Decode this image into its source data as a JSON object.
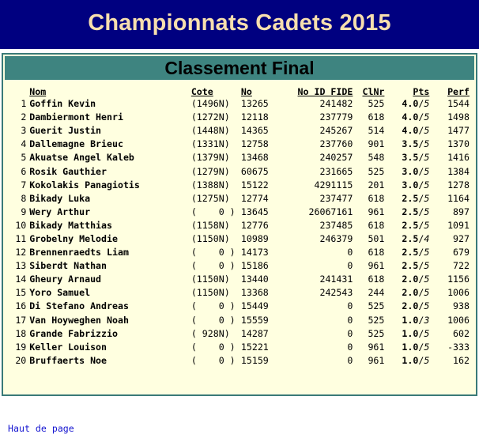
{
  "page": {
    "title": "Championnats Cadets 2015"
  },
  "section": {
    "title": "Classement Final"
  },
  "columns": {
    "rank": "",
    "name": "Nom",
    "cote": "Cote",
    "no": "No",
    "fide": "No ID FIDE",
    "clnr": "ClNr",
    "pts": "Pts",
    "perf": "Perf"
  },
  "rows": [
    {
      "rank": "1",
      "name": "Goffin Kevin",
      "cote": "(1496N)",
      "no": "13265",
      "fide": "241482",
      "clnr": "525",
      "pts": "4.0",
      "games": "5",
      "perf": "1544"
    },
    {
      "rank": "2",
      "name": "Dambiermont Henri",
      "cote": "(1272N)",
      "no": "12118",
      "fide": "237779",
      "clnr": "618",
      "pts": "4.0",
      "games": "5",
      "perf": "1498"
    },
    {
      "rank": "3",
      "name": "Guerit Justin",
      "cote": "(1448N)",
      "no": "14365",
      "fide": "245267",
      "clnr": "514",
      "pts": "4.0",
      "games": "5",
      "perf": "1477"
    },
    {
      "rank": "4",
      "name": "Dallemagne Brieuc",
      "cote": "(1331N)",
      "no": "12758",
      "fide": "237760",
      "clnr": "901",
      "pts": "3.5",
      "games": "5",
      "perf": "1370"
    },
    {
      "rank": "5",
      "name": "Akuatse Angel Kaleb",
      "cote": "(1379N)",
      "no": "13468",
      "fide": "240257",
      "clnr": "548",
      "pts": "3.5",
      "games": "5",
      "perf": "1416"
    },
    {
      "rank": "6",
      "name": "Rosik Gauthier",
      "cote": "(1279N)",
      "no": "60675",
      "fide": "231665",
      "clnr": "525",
      "pts": "3.0",
      "games": "5",
      "perf": "1384"
    },
    {
      "rank": "7",
      "name": "Kokolakis Panagiotis",
      "cote": "(1388N)",
      "no": "15122",
      "fide": "4291115",
      "clnr": "201",
      "pts": "3.0",
      "games": "5",
      "perf": "1278"
    },
    {
      "rank": "8",
      "name": "Bikady Luka",
      "cote": "(1275N)",
      "no": "12774",
      "fide": "237477",
      "clnr": "618",
      "pts": "2.5",
      "games": "5",
      "perf": "1164"
    },
    {
      "rank": "9",
      "name": "Wery Arthur",
      "cote": "(    0 )",
      "no": "13645",
      "fide": "26067161",
      "clnr": "961",
      "pts": "2.5",
      "games": "5",
      "perf": "897"
    },
    {
      "rank": "10",
      "name": "Bikady Matthias",
      "cote": "(1158N)",
      "no": "12776",
      "fide": "237485",
      "clnr": "618",
      "pts": "2.5",
      "games": "5",
      "perf": "1091"
    },
    {
      "rank": "11",
      "name": "Grobelny Melodie",
      "cote": "(1150N)",
      "no": "10989",
      "fide": "246379",
      "clnr": "501",
      "pts": "2.5",
      "games": "4",
      "perf": "927"
    },
    {
      "rank": "12",
      "name": "Brennenraedts Liam",
      "cote": "(    0 )",
      "no": "14173",
      "fide": "0",
      "clnr": "618",
      "pts": "2.5",
      "games": "5",
      "perf": "679"
    },
    {
      "rank": "13",
      "name": "Siberdt Nathan",
      "cote": "(    0 )",
      "no": "15186",
      "fide": "0",
      "clnr": "961",
      "pts": "2.5",
      "games": "5",
      "perf": "722"
    },
    {
      "rank": "14",
      "name": "Gheury Arnaud",
      "cote": "(1150N)",
      "no": "13440",
      "fide": "241431",
      "clnr": "618",
      "pts": "2.0",
      "games": "5",
      "perf": "1156"
    },
    {
      "rank": "15",
      "name": "Yoro Samuel",
      "cote": "(1150N)",
      "no": "13368",
      "fide": "242543",
      "clnr": "244",
      "pts": "2.0",
      "games": "5",
      "perf": "1006"
    },
    {
      "rank": "16",
      "name": "Di Stefano Andreas",
      "cote": "(    0 )",
      "no": "15449",
      "fide": "0",
      "clnr": "525",
      "pts": "2.0",
      "games": "5",
      "perf": "938"
    },
    {
      "rank": "17",
      "name": "Van Hoyweghen Noah",
      "cote": "(    0 )",
      "no": "15559",
      "fide": "0",
      "clnr": "525",
      "pts": "1.0",
      "games": "3",
      "perf": "1006"
    },
    {
      "rank": "18",
      "name": "Grande Fabrizzio",
      "cote": "( 928N)",
      "no": "14287",
      "fide": "0",
      "clnr": "525",
      "pts": "1.0",
      "games": "5",
      "perf": "602"
    },
    {
      "rank": "19",
      "name": "Keller Louison",
      "cote": "(    0 )",
      "no": "15221",
      "fide": "0",
      "clnr": "961",
      "pts": "1.0",
      "games": "5",
      "perf": "-333"
    },
    {
      "rank": "20",
      "name": "Bruffaerts Noe",
      "cote": "(    0 )",
      "no": "15159",
      "fide": "0",
      "clnr": "961",
      "pts": "1.0",
      "games": "5",
      "perf": "162"
    }
  ],
  "footer": {
    "link": "Haut de page"
  },
  "colors": {
    "banner_bg": "#000080",
    "banner_text": "#f7dfae",
    "panel_bg": "#ffffe0",
    "panel_head_bg": "#3e8480",
    "link": "#1515d0"
  }
}
